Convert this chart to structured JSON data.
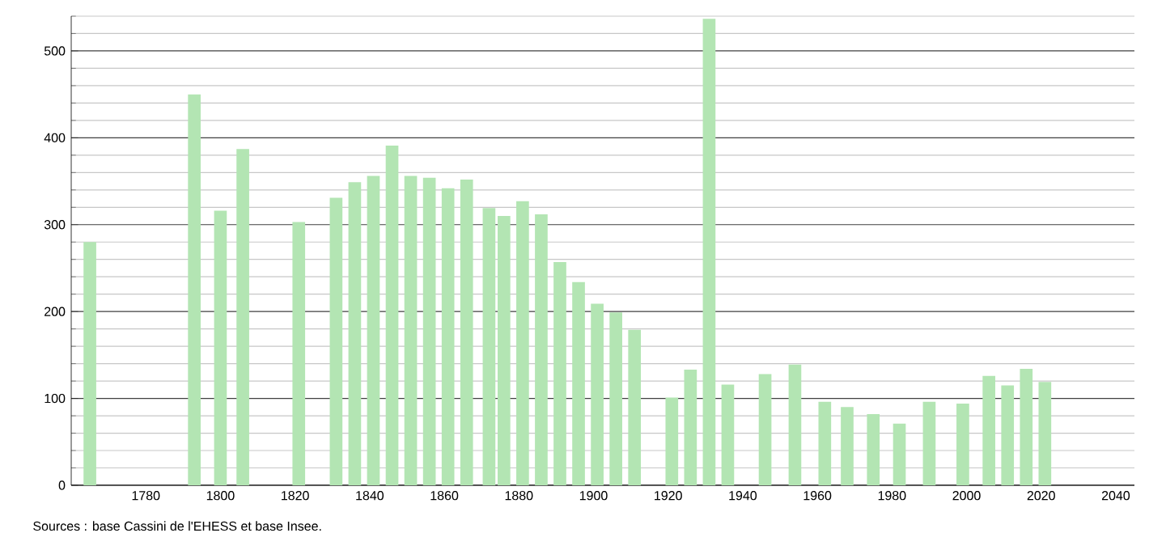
{
  "chart_data": {
    "type": "bar",
    "x": [
      1765,
      1793,
      1800,
      1806,
      1821,
      1831,
      1836,
      1841,
      1846,
      1851,
      1856,
      1861,
      1866,
      1872,
      1876,
      1881,
      1886,
      1891,
      1896,
      1901,
      1906,
      1911,
      1921,
      1926,
      1931,
      1936,
      1946,
      1954,
      1962,
      1968,
      1975,
      1982,
      1990,
      1999,
      2006,
      2011,
      2016,
      2021
    ],
    "values": [
      280,
      450,
      316,
      387,
      303,
      331,
      349,
      356,
      391,
      356,
      354,
      342,
      352,
      319,
      310,
      327,
      312,
      257,
      234,
      209,
      199,
      179,
      101,
      133,
      537,
      116,
      128,
      139,
      96,
      90,
      82,
      71,
      96,
      94,
      126,
      115,
      134,
      119
    ],
    "color": "#b3e5b3",
    "xlim": [
      1760,
      2045
    ],
    "xticks": [
      1780,
      1800,
      1820,
      1840,
      1860,
      1880,
      1900,
      1920,
      1940,
      1960,
      1980,
      2000,
      2020,
      2040
    ],
    "ylim": [
      0,
      540
    ],
    "yticks": [
      0,
      {
        "value": 20,
        "label": null
      },
      {
        "value": 40,
        "label": null
      },
      {
        "value": 60,
        "label": null
      },
      {
        "value": 80,
        "label": null
      },
      100,
      {
        "value": 120,
        "label": null
      },
      {
        "value": 140,
        "label": null
      },
      {
        "value": 160,
        "label": null
      },
      {
        "value": 180,
        "label": null
      },
      200,
      {
        "value": 220,
        "label": null
      },
      {
        "value": 240,
        "label": null
      },
      {
        "value": 260,
        "label": null
      },
      {
        "value": 280,
        "label": null
      },
      300,
      {
        "value": 320,
        "label": null
      },
      {
        "value": 340,
        "label": null
      },
      {
        "value": 360,
        "label": null
      },
      {
        "value": 380,
        "label": null
      },
      400,
      {
        "value": 420,
        "label": null
      },
      {
        "value": 440,
        "label": null
      },
      {
        "value": 460,
        "label": null
      },
      {
        "value": 480,
        "label": null
      },
      500,
      {
        "value": 520,
        "label": null
      },
      {
        "value": 540,
        "label": null
      }
    ],
    "grid": "y",
    "annotations": [
      "Sources : base Cassini de l'EHESS et base Insee."
    ]
  }
}
